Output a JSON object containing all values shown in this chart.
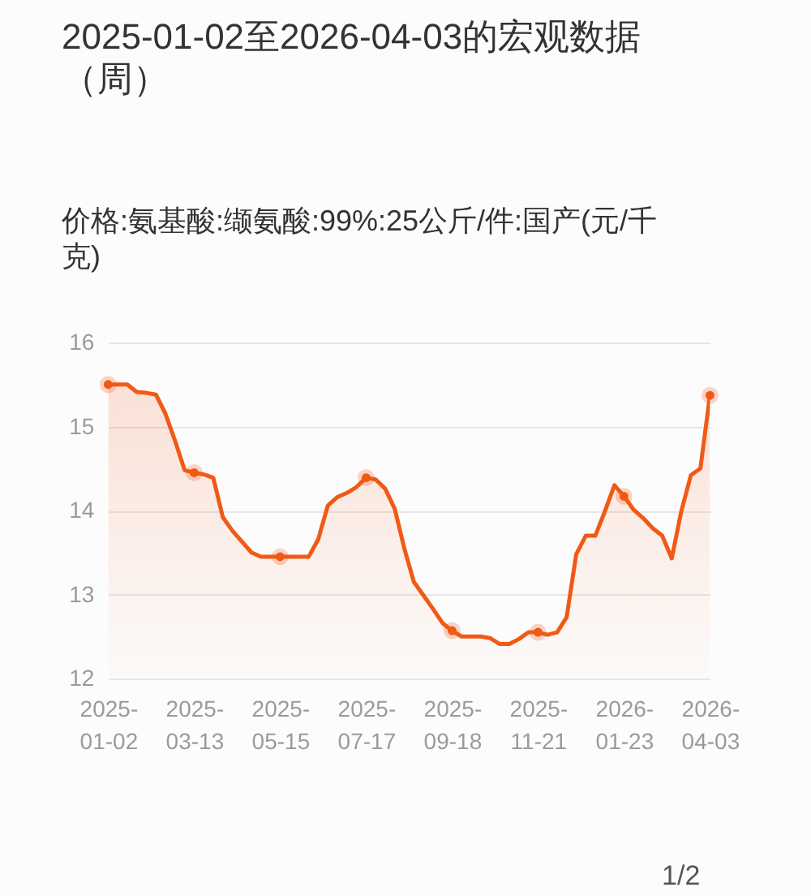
{
  "chart_data": {
    "type": "area",
    "title": "2025-01-02至2026-04-03的宏观数据（周）",
    "subtitle": "价格:氨基酸:缬氨酸:99%:25公斤/件:国产(元/千克)",
    "categories": [
      "2025-01-02",
      null,
      null,
      null,
      null,
      null,
      null,
      null,
      null,
      "2025-03-13",
      null,
      null,
      null,
      null,
      null,
      null,
      null,
      null,
      "2025-05-15",
      null,
      null,
      null,
      null,
      null,
      null,
      null,
      null,
      "2025-07-17",
      null,
      null,
      null,
      null,
      null,
      null,
      null,
      null,
      "2025-09-18",
      null,
      null,
      null,
      null,
      null,
      null,
      null,
      null,
      "2025-11-21",
      null,
      null,
      null,
      null,
      null,
      null,
      null,
      null,
      "2026-01-23",
      null,
      null,
      null,
      null,
      null,
      null,
      null,
      null,
      "2026-04-03"
    ],
    "series": [
      {
        "color": "#f05a16",
        "values": [
          15.5,
          15.5,
          15.5,
          15.41,
          15.4,
          15.38,
          15.15,
          14.83,
          14.48,
          14.45,
          14.43,
          14.39,
          13.92,
          13.76,
          13.63,
          13.5,
          13.45,
          13.45,
          13.45,
          13.45,
          13.45,
          13.45,
          13.66,
          14.06,
          14.16,
          14.21,
          14.28,
          14.39,
          14.37,
          14.26,
          14.02,
          13.55,
          13.15,
          12.99,
          12.83,
          12.66,
          12.57,
          12.5,
          12.5,
          12.5,
          12.48,
          12.41,
          12.41,
          12.47,
          12.55,
          12.55,
          12.52,
          12.55,
          12.73,
          13.48,
          13.7,
          13.7,
          13.99,
          14.3,
          14.17,
          14.01,
          13.91,
          13.79,
          13.7,
          13.43,
          13.99,
          14.42,
          14.5,
          15.37
        ]
      }
    ],
    "ylim": [
      12,
      16
    ],
    "yticks": [
      12,
      13,
      14,
      15,
      16
    ],
    "grid": "y",
    "annotations": [
      "1/2"
    ]
  }
}
